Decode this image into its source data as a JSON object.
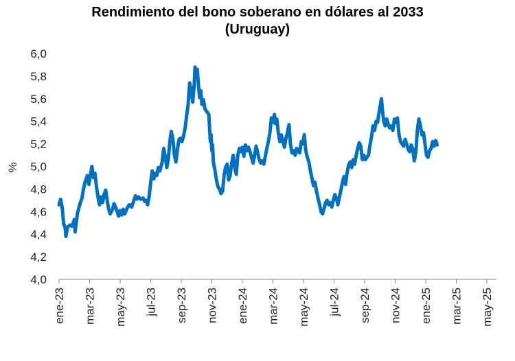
{
  "chart_data": {
    "type": "line",
    "title": "Rendimiento del bono soberano en dólares al 2033",
    "subtitle": "(Uruguay)",
    "ylabel": "%",
    "xlabel": "",
    "ylim": [
      4.0,
      6.0
    ],
    "y_ticks": [
      "4,0",
      "4,2",
      "4,4",
      "4,6",
      "4,8",
      "5,0",
      "5,2",
      "5,4",
      "5,6",
      "5,8",
      "6,0"
    ],
    "x_ticks": [
      "ene-23",
      "mar-23",
      "may-23",
      "jul-23",
      "sep-23",
      "nov-23",
      "ene-24",
      "mar-24",
      "may-24",
      "jul-24",
      "sep-24",
      "nov-24",
      "ene-25",
      "mar-25",
      "may-25"
    ],
    "grid": false,
    "line_color": "#0070c0",
    "x_unit": "months since ene-23",
    "series": [
      {
        "name": "",
        "points": [
          [
            0.0,
            4.66
          ],
          [
            0.1,
            4.71
          ],
          [
            0.2,
            4.64
          ],
          [
            0.3,
            4.49
          ],
          [
            0.4,
            4.46
          ],
          [
            0.45,
            4.38
          ],
          [
            0.55,
            4.46
          ],
          [
            0.7,
            4.48
          ],
          [
            0.85,
            4.47
          ],
          [
            1.0,
            4.53
          ],
          [
            1.05,
            4.42
          ],
          [
            1.2,
            4.58
          ],
          [
            1.35,
            4.66
          ],
          [
            1.5,
            4.72
          ],
          [
            1.6,
            4.8
          ],
          [
            1.7,
            4.86
          ],
          [
            1.85,
            4.92
          ],
          [
            1.95,
            4.84
          ],
          [
            2.05,
            4.92
          ],
          [
            2.15,
            5.0
          ],
          [
            2.25,
            4.9
          ],
          [
            2.35,
            4.94
          ],
          [
            2.45,
            4.82
          ],
          [
            2.55,
            4.73
          ],
          [
            2.65,
            4.66
          ],
          [
            2.75,
            4.73
          ],
          [
            2.85,
            4.68
          ],
          [
            2.95,
            4.75
          ],
          [
            3.05,
            4.79
          ],
          [
            3.15,
            4.7
          ],
          [
            3.25,
            4.62
          ],
          [
            3.35,
            4.58
          ],
          [
            3.5,
            4.62
          ],
          [
            3.6,
            4.67
          ],
          [
            3.7,
            4.64
          ],
          [
            3.8,
            4.6
          ],
          [
            3.9,
            4.56
          ],
          [
            4.0,
            4.61
          ],
          [
            4.1,
            4.57
          ],
          [
            4.2,
            4.62
          ],
          [
            4.3,
            4.58
          ],
          [
            4.45,
            4.63
          ],
          [
            4.6,
            4.66
          ],
          [
            4.75,
            4.64
          ],
          [
            4.9,
            4.7
          ],
          [
            5.0,
            4.74
          ],
          [
            5.1,
            4.71
          ],
          [
            5.2,
            4.73
          ],
          [
            5.35,
            4.71
          ],
          [
            5.5,
            4.72
          ],
          [
            5.6,
            4.69
          ],
          [
            5.7,
            4.7
          ],
          [
            5.8,
            4.66
          ],
          [
            5.9,
            4.74
          ],
          [
            6.0,
            4.86
          ],
          [
            6.1,
            4.96
          ],
          [
            6.2,
            4.89
          ],
          [
            6.3,
            4.94
          ],
          [
            6.4,
            4.92
          ],
          [
            6.5,
            4.99
          ],
          [
            6.6,
            4.96
          ],
          [
            6.75,
            5.04
          ],
          [
            6.85,
            5.16
          ],
          [
            6.95,
            5.09
          ],
          [
            7.05,
            4.99
          ],
          [
            7.15,
            5.06
          ],
          [
            7.25,
            5.22
          ],
          [
            7.35,
            5.31
          ],
          [
            7.45,
            5.24
          ],
          [
            7.55,
            5.1
          ],
          [
            7.65,
            5.04
          ],
          [
            7.75,
            5.15
          ],
          [
            7.85,
            5.24
          ],
          [
            7.95,
            5.25
          ],
          [
            8.05,
            5.22
          ],
          [
            8.15,
            5.27
          ],
          [
            8.25,
            5.34
          ],
          [
            8.35,
            5.45
          ],
          [
            8.45,
            5.55
          ],
          [
            8.55,
            5.74
          ],
          [
            8.65,
            5.66
          ],
          [
            8.75,
            5.57
          ],
          [
            8.85,
            5.73
          ],
          [
            8.9,
            5.88
          ],
          [
            8.95,
            5.84
          ],
          [
            9.0,
            5.8
          ],
          [
            9.05,
            5.86
          ],
          [
            9.1,
            5.76
          ],
          [
            9.15,
            5.68
          ],
          [
            9.2,
            5.61
          ],
          [
            9.28,
            5.67
          ],
          [
            9.35,
            5.55
          ],
          [
            9.45,
            5.59
          ],
          [
            9.55,
            5.51
          ],
          [
            9.7,
            5.48
          ],
          [
            9.8,
            5.46
          ],
          [
            9.9,
            5.22
          ],
          [
            9.95,
            5.28
          ],
          [
            10.0,
            5.14
          ],
          [
            10.05,
            5.19
          ],
          [
            10.1,
            5.04
          ],
          [
            10.2,
            4.97
          ],
          [
            10.3,
            4.88
          ],
          [
            10.4,
            4.82
          ],
          [
            10.5,
            4.8
          ],
          [
            10.6,
            4.76
          ],
          [
            10.7,
            4.78
          ],
          [
            10.8,
            4.92
          ],
          [
            10.9,
            4.99
          ],
          [
            11.0,
            5.02
          ],
          [
            11.1,
            4.88
          ],
          [
            11.2,
            4.92
          ],
          [
            11.3,
            5.03
          ],
          [
            11.4,
            5.1
          ],
          [
            11.5,
            4.99
          ],
          [
            11.6,
            4.93
          ],
          [
            11.7,
            5.1
          ],
          [
            11.8,
            5.16
          ],
          [
            11.9,
            5.13
          ],
          [
            12.0,
            5.17
          ],
          [
            12.1,
            5.09
          ],
          [
            12.2,
            5.19
          ],
          [
            12.3,
            5.14
          ],
          [
            12.4,
            5.17
          ],
          [
            12.5,
            5.13
          ],
          [
            12.6,
            5.08
          ],
          [
            12.7,
            5.03
          ],
          [
            12.8,
            5.1
          ],
          [
            12.9,
            5.18
          ],
          [
            13.0,
            5.12
          ],
          [
            13.1,
            5.06
          ],
          [
            13.2,
            5.03
          ],
          [
            13.3,
            5.05
          ],
          [
            13.4,
            5.02
          ],
          [
            13.5,
            5.09
          ],
          [
            13.6,
            5.16
          ],
          [
            13.7,
            5.22
          ],
          [
            13.8,
            5.3
          ],
          [
            13.9,
            5.43
          ],
          [
            14.0,
            5.39
          ],
          [
            14.1,
            5.46
          ],
          [
            14.15,
            5.38
          ],
          [
            14.25,
            5.42
          ],
          [
            14.35,
            5.3
          ],
          [
            14.45,
            5.22
          ],
          [
            14.55,
            5.28
          ],
          [
            14.65,
            5.22
          ],
          [
            14.75,
            5.17
          ],
          [
            14.85,
            5.25
          ],
          [
            14.95,
            5.3
          ],
          [
            15.05,
            5.37
          ],
          [
            15.15,
            5.19
          ],
          [
            15.25,
            5.12
          ],
          [
            15.35,
            5.14
          ],
          [
            15.45,
            5.1
          ],
          [
            15.55,
            5.16
          ],
          [
            15.65,
            5.13
          ],
          [
            15.75,
            5.12
          ],
          [
            15.85,
            5.22
          ],
          [
            15.95,
            5.2
          ],
          [
            16.05,
            5.28
          ],
          [
            16.15,
            5.14
          ],
          [
            16.25,
            5.08
          ],
          [
            16.35,
            5.04
          ],
          [
            16.45,
            4.96
          ],
          [
            16.55,
            4.9
          ],
          [
            16.65,
            4.83
          ],
          [
            16.75,
            4.86
          ],
          [
            16.85,
            4.78
          ],
          [
            16.95,
            4.72
          ],
          [
            17.05,
            4.66
          ],
          [
            17.15,
            4.6
          ],
          [
            17.25,
            4.58
          ],
          [
            17.35,
            4.63
          ],
          [
            17.45,
            4.68
          ],
          [
            17.55,
            4.7
          ],
          [
            17.65,
            4.66
          ],
          [
            17.75,
            4.68
          ],
          [
            17.85,
            4.64
          ],
          [
            17.95,
            4.7
          ],
          [
            18.05,
            4.75
          ],
          [
            18.15,
            4.72
          ],
          [
            18.25,
            4.66
          ],
          [
            18.35,
            4.73
          ],
          [
            18.45,
            4.79
          ],
          [
            18.55,
            4.86
          ],
          [
            18.65,
            4.91
          ],
          [
            18.75,
            4.84
          ],
          [
            18.85,
            4.94
          ],
          [
            18.95,
            5.01
          ],
          [
            19.05,
            5.04
          ],
          [
            19.15,
            4.99
          ],
          [
            19.25,
            5.06
          ],
          [
            19.35,
            5.02
          ],
          [
            19.45,
            5.1
          ],
          [
            19.55,
            5.16
          ],
          [
            19.65,
            5.21
          ],
          [
            19.75,
            5.18
          ],
          [
            19.85,
            5.06
          ],
          [
            19.95,
            5.1
          ],
          [
            20.05,
            5.06
          ],
          [
            20.15,
            5.08
          ],
          [
            20.25,
            5.1
          ],
          [
            20.35,
            5.19
          ],
          [
            20.45,
            5.26
          ],
          [
            20.55,
            5.36
          ],
          [
            20.65,
            5.32
          ],
          [
            20.75,
            5.4
          ],
          [
            20.85,
            5.39
          ],
          [
            20.95,
            5.48
          ],
          [
            21.05,
            5.56
          ],
          [
            21.1,
            5.6
          ],
          [
            21.15,
            5.52
          ],
          [
            21.25,
            5.4
          ],
          [
            21.35,
            5.36
          ],
          [
            21.45,
            5.42
          ],
          [
            21.55,
            5.37
          ],
          [
            21.65,
            5.34
          ],
          [
            21.75,
            5.36
          ],
          [
            21.85,
            5.32
          ],
          [
            21.95,
            5.42
          ],
          [
            22.05,
            5.39
          ],
          [
            22.15,
            5.43
          ],
          [
            22.25,
            5.28
          ],
          [
            22.35,
            5.22
          ],
          [
            22.45,
            5.2
          ],
          [
            22.55,
            5.18
          ],
          [
            22.65,
            5.24
          ],
          [
            22.75,
            5.2
          ],
          [
            22.85,
            5.15
          ],
          [
            22.95,
            5.13
          ],
          [
            23.05,
            5.19
          ],
          [
            23.15,
            5.15
          ],
          [
            23.25,
            5.05
          ],
          [
            23.35,
            5.12
          ],
          [
            23.45,
            5.32
          ],
          [
            23.55,
            5.42
          ],
          [
            23.65,
            5.36
          ],
          [
            23.75,
            5.28
          ],
          [
            23.85,
            5.3
          ],
          [
            23.95,
            5.2
          ],
          [
            24.05,
            5.1
          ],
          [
            24.15,
            5.08
          ],
          [
            24.25,
            5.14
          ],
          [
            24.35,
            5.16
          ],
          [
            24.45,
            5.22
          ],
          [
            24.55,
            5.18
          ],
          [
            24.65,
            5.23
          ],
          [
            24.75,
            5.19
          ]
        ]
      }
    ]
  }
}
